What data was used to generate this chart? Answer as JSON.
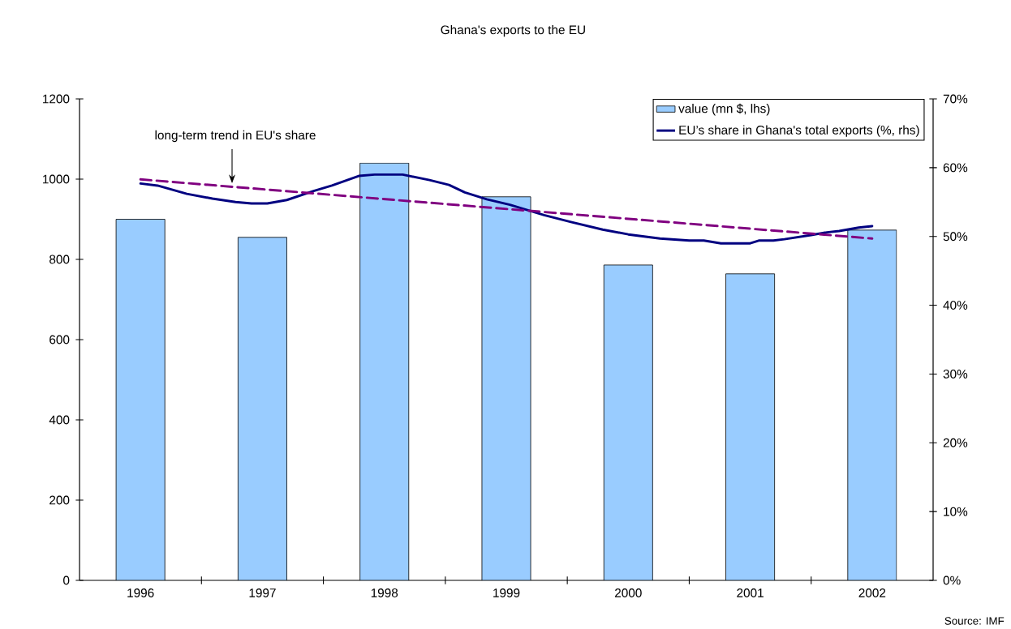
{
  "chart_data": {
    "type": "bar",
    "title": "Ghana's exports to the EU",
    "x": [
      1996,
      1997,
      1998,
      1999,
      2000,
      2001,
      2002
    ],
    "xlim": [
      1995.5,
      2002.5
    ],
    "xticks": [
      1996,
      1997,
      1998,
      1999,
      2000,
      2001,
      2002,
      {
        "value": 1996.5,
        "label": null
      },
      {
        "value": 1997.5,
        "label": null
      },
      {
        "value": 1998.5,
        "label": null
      },
      {
        "value": 1999.5,
        "label": null
      },
      {
        "value": 2000.5,
        "label": null
      },
      {
        "value": 2001.5,
        "label": null
      }
    ],
    "ylim": [
      0,
      1200
    ],
    "yticks": [
      0,
      200,
      400,
      600,
      800,
      1000,
      1200
    ],
    "y2lim": [
      0,
      70
    ],
    "y2ticks": [
      {
        "value": 0,
        "label": "0%"
      },
      {
        "value": 10,
        "label": "10%"
      },
      {
        "value": 20,
        "label": "20%"
      },
      {
        "value": 30,
        "label": "30%"
      },
      {
        "value": 40,
        "label": "40%"
      },
      {
        "value": 50,
        "label": "50%"
      },
      {
        "value": 60,
        "label": "60%"
      },
      {
        "value": 70,
        "label": "70%"
      }
    ],
    "legend": "top right",
    "series": [
      {
        "name": "value (mn $, lhs)",
        "color": "#99ccff",
        "values": [
          900,
          855,
          1040,
          956,
          786,
          764,
          873
        ]
      },
      {
        "name": "EU’s share in Ghana's total exports (%, rhs)",
        "type": "line",
        "axis": "y2",
        "color": "#000080",
        "line_style": "solid",
        "x": [
          1996.0,
          1996.14,
          1996.38,
          1996.59,
          1996.78,
          1996.91,
          1997.04,
          1997.2,
          1997.42,
          1997.57,
          1997.79,
          1997.92,
          1998.15,
          1998.37,
          1998.53,
          1998.66,
          1998.84,
          1999.03,
          1999.31,
          1999.53,
          1999.79,
          2000.0,
          2000.26,
          2000.5,
          2000.62,
          2000.76,
          2001.0,
          2001.07,
          2001.19,
          2001.28,
          2001.5,
          2001.63,
          2001.73,
          2001.89,
          2002.0
        ],
        "values": [
          57.7,
          57.4,
          56.2,
          55.5,
          55.0,
          54.8,
          54.8,
          55.3,
          56.6,
          57.4,
          58.8,
          59.0,
          59.0,
          58.2,
          57.5,
          56.4,
          55.4,
          54.6,
          53.1,
          52.1,
          51.0,
          50.3,
          49.7,
          49.4,
          49.4,
          49.0,
          49.0,
          49.4,
          49.4,
          49.6,
          50.2,
          50.6,
          50.8,
          51.3,
          51.5
        ]
      },
      {
        "type": "line",
        "axis": "y2",
        "color": "#800080",
        "line_style": "dashed",
        "x": [
          1996,
          2002
        ],
        "values": [
          58.3,
          49.7
        ]
      }
    ],
    "annotations": [
      "long-term trend in EU's share",
      "Source: IMF"
    ]
  }
}
